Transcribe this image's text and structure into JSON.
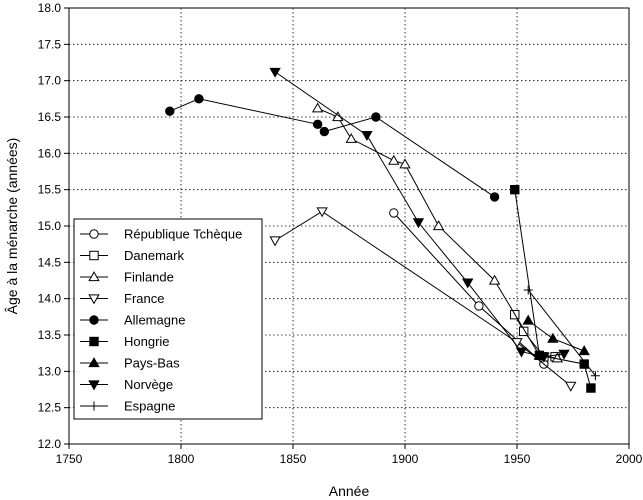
{
  "chart_data": {
    "type": "line",
    "title": "",
    "xlabel": "Année",
    "ylabel": "Âge à la ménarche (années)",
    "xlim": [
      1750,
      2000
    ],
    "ylim": [
      12.0,
      18.0
    ],
    "x_ticks": [
      1750,
      1800,
      1850,
      1900,
      1950,
      2000
    ],
    "y_ticks": [
      12.0,
      12.5,
      13.0,
      13.5,
      14.0,
      14.5,
      15.0,
      15.5,
      16.0,
      16.5,
      17.0,
      17.5,
      18.0
    ],
    "grid": true,
    "legend_position": "bottom-left",
    "series": [
      {
        "name": "République Tchèque",
        "marker": "circle-open",
        "points": [
          [
            1895,
            15.18
          ],
          [
            1933,
            13.9
          ],
          [
            1962,
            13.1
          ]
        ]
      },
      {
        "name": "Danemark",
        "marker": "square-open",
        "points": [
          [
            1949,
            13.78
          ],
          [
            1953,
            13.55
          ],
          [
            1962,
            13.2
          ],
          [
            1967,
            13.2
          ]
        ]
      },
      {
        "name": "Finlande",
        "marker": "triangle-up-open",
        "points": [
          [
            1861,
            16.62
          ],
          [
            1870,
            16.5
          ],
          [
            1876,
            16.2
          ],
          [
            1895,
            15.9
          ],
          [
            1900,
            15.85
          ],
          [
            1915,
            15.0
          ],
          [
            1940,
            14.25
          ],
          [
            1960,
            13.22
          ],
          [
            1968,
            13.18
          ]
        ]
      },
      {
        "name": "France",
        "marker": "triangle-down-open",
        "points": [
          [
            1842,
            14.8
          ],
          [
            1863,
            15.2
          ],
          [
            1950,
            13.4
          ],
          [
            1974,
            12.8
          ]
        ]
      },
      {
        "name": "Allemagne",
        "marker": "circle-filled",
        "points": [
          [
            1795,
            16.58
          ],
          [
            1808,
            16.75
          ],
          [
            1861,
            16.4
          ],
          [
            1864,
            16.3
          ],
          [
            1887,
            16.5
          ],
          [
            1940,
            15.4
          ]
        ]
      },
      {
        "name": "Hongrie",
        "marker": "square-filled",
        "points": [
          [
            1949,
            15.5
          ],
          [
            1960,
            13.22
          ],
          [
            1980,
            13.1
          ],
          [
            1983,
            12.77
          ]
        ]
      },
      {
        "name": "Pays-Bas",
        "marker": "triangle-up-filled",
        "points": [
          [
            1955,
            13.7
          ],
          [
            1966,
            13.45
          ],
          [
            1980,
            13.28
          ]
        ]
      },
      {
        "name": "Norvège",
        "marker": "triangle-down-filled",
        "points": [
          [
            1842,
            17.12
          ],
          [
            1883,
            16.25
          ],
          [
            1906,
            15.05
          ],
          [
            1928,
            14.22
          ],
          [
            1952,
            13.27
          ],
          [
            1962,
            13.2
          ],
          [
            1971,
            13.24
          ]
        ]
      },
      {
        "name": "Espagne",
        "marker": "plus",
        "points": [
          [
            1955,
            14.12
          ],
          [
            1985,
            12.94
          ]
        ]
      }
    ]
  }
}
